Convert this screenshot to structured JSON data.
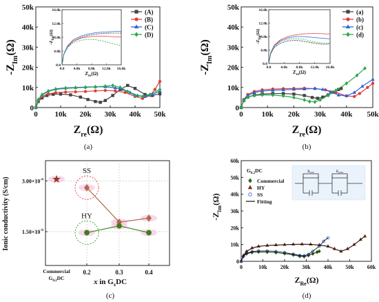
{
  "chart_data": [
    {
      "id": "a",
      "type": "line",
      "panel_label": "(a)",
      "xlabel_main": "Z",
      "xlabel_sub": "re",
      "xlabel_unit": "(Ω)",
      "ylabel_main": "-Z",
      "ylabel_sub": "Im",
      "ylabel_unit": "(Ω)",
      "xlim": [
        0,
        50000
      ],
      "ylim": [
        0,
        50000
      ],
      "xticks": [
        "0",
        "10k",
        "20k",
        "30k",
        "40k",
        "50k"
      ],
      "yticks": [
        "0",
        "10k",
        "20k",
        "30k",
        "40k",
        "50k"
      ],
      "legend": [
        "(A)",
        "(B)",
        "(C)",
        "(D)"
      ],
      "legend_position": "top-right",
      "series": [
        {
          "name": "(A)",
          "color": "#444444",
          "marker": "square",
          "x": [
            0,
            1000,
            2500,
            4500,
            7000,
            10000,
            14000,
            18000,
            21000,
            24000,
            26000,
            28000,
            31000,
            34000,
            37000,
            40000,
            44000,
            47000,
            50000
          ],
          "y": [
            0,
            3000,
            4800,
            6000,
            6600,
            6700,
            6300,
            5200,
            4000,
            3000,
            2600,
            3500,
            6000,
            9000,
            11000,
            9500,
            6500,
            6000,
            6800
          ]
        },
        {
          "name": "(B)",
          "color": "#e33b3b",
          "marker": "circle",
          "x": [
            0,
            1000,
            2500,
            5000,
            8000,
            12000,
            16000,
            20000,
            24000,
            28000,
            32000,
            36000,
            40000,
            43000,
            46000,
            48000,
            50000
          ],
          "y": [
            0,
            3500,
            5500,
            6800,
            7400,
            7700,
            7800,
            8000,
            8300,
            8500,
            8300,
            7500,
            5500,
            4500,
            6000,
            9000,
            13000
          ]
        },
        {
          "name": "(C)",
          "color": "#2b63d9",
          "marker": "triangle",
          "x": [
            0,
            1000,
            2500,
            5000,
            8000,
            12000,
            16000,
            20000,
            24000,
            28000,
            32000,
            35000,
            38000,
            41000,
            44000,
            47000,
            50000
          ],
          "y": [
            0,
            4000,
            6500,
            8300,
            9300,
            9800,
            10000,
            10200,
            10300,
            10300,
            9800,
            9000,
            7500,
            6000,
            5500,
            6500,
            8200
          ]
        },
        {
          "name": "(D)",
          "color": "#2aa84a",
          "marker": "diamond",
          "x": [
            0,
            1000,
            2500,
            5000,
            8000,
            12000,
            16000,
            20000,
            24000,
            28000,
            31000,
            34000,
            37000,
            40000,
            43000,
            46000,
            50000
          ],
          "y": [
            0,
            4000,
            6200,
            8000,
            9000,
            9500,
            9800,
            10000,
            10300,
            10600,
            11000,
            10000,
            8000,
            6000,
            5500,
            6500,
            9000
          ]
        }
      ],
      "inset": {
        "xlabel_main": "Z",
        "xlabel_sub": "re",
        "xlabel_unit": "(Ω)",
        "ylabel_main": "-Z",
        "ylabel_sub": "Im",
        "ylabel_unit": "(Ω)",
        "xlim": [
          0,
          16000
        ],
        "ylim": [
          0,
          16000
        ],
        "xticks": [
          "0.0",
          "4.0k",
          "8.0k",
          "12.0k",
          "16.0k"
        ],
        "yticks": [
          "0.0",
          "4.0k",
          "8.0k",
          "12.0k",
          "16.0k"
        ],
        "series": [
          {
            "name": "(A)",
            "x": [
              0,
              500,
              1500,
              3000,
              5000,
              7000,
              9000,
              11000,
              13000,
              15000,
              16000
            ],
            "y": [
              0,
              3000,
              5200,
              6800,
              7900,
              8500,
              8900,
              9100,
              9200,
              9200,
              9200
            ]
          },
          {
            "name": "(B)",
            "x": [
              0,
              500,
              1500,
              3000,
              5000,
              7000,
              9000,
              11000,
              13000,
              15000,
              16000
            ],
            "y": [
              0,
              3100,
              5300,
              6800,
              7700,
              8100,
              8300,
              8300,
              8200,
              8100,
              8000
            ]
          },
          {
            "name": "(C)",
            "x": [
              0,
              500,
              1500,
              3000,
              5000,
              7000,
              9000,
              11000,
              13000,
              15000,
              16000
            ],
            "y": [
              0,
              3200,
              5500,
              7200,
              8300,
              8900,
              9300,
              9500,
              9600,
              9700,
              9700
            ]
          },
          {
            "name": "(D)",
            "x": [
              0,
              500,
              1500,
              3000,
              5000,
              7000,
              9000,
              11000,
              13000,
              15000,
              16000
            ],
            "y": [
              0,
              3000,
              5000,
              6400,
              7100,
              7400,
              7300,
              6900,
              6300,
              5800,
              5600
            ]
          }
        ]
      }
    },
    {
      "id": "b",
      "type": "line",
      "panel_label": "(b)",
      "xlabel_main": "Z",
      "xlabel_sub": "re",
      "xlabel_unit": "(Ω)",
      "ylabel_main": "-Z",
      "ylabel_sub": "Im",
      "ylabel_unit": "(Ω)",
      "xlim": [
        0,
        50000
      ],
      "ylim": [
        0,
        50000
      ],
      "xticks": [
        "0",
        "10k",
        "20k",
        "30k",
        "40k",
        "50k"
      ],
      "yticks": [
        "0",
        "10k",
        "20k",
        "30k",
        "40k",
        "50k"
      ],
      "legend": [
        "(a)",
        "(b)",
        "(c)",
        "(d)"
      ],
      "legend_position": "top-right",
      "series": [
        {
          "name": "(a)",
          "color": "#444444",
          "marker": "square",
          "x": [
            0,
            1000,
            2500,
            5000,
            8000,
            12000,
            16000,
            20000,
            24000,
            27000,
            29000,
            31000,
            33000,
            35000,
            37000,
            38000
          ],
          "y": [
            0,
            3500,
            5200,
            6200,
            6700,
            7000,
            7000,
            6700,
            6000,
            5000,
            4600,
            5200,
            6300,
            7600,
            9000,
            9500
          ]
        },
        {
          "name": "(b)",
          "color": "#e33b3b",
          "marker": "circle",
          "x": [
            0,
            1000,
            2500,
            5000,
            8000,
            12000,
            16000,
            20000,
            24000,
            28000,
            32000,
            36000,
            40000,
            43000,
            45000,
            48000,
            50000
          ],
          "y": [
            0,
            4000,
            6500,
            8000,
            8800,
            9200,
            9400,
            9500,
            9600,
            9400,
            8800,
            7500,
            5800,
            5500,
            7000,
            10000,
            12000
          ]
        },
        {
          "name": "(c)",
          "color": "#2b63d9",
          "marker": "triangle",
          "x": [
            0,
            1000,
            2500,
            5000,
            8000,
            12000,
            16000,
            20000,
            24000,
            28000,
            31000,
            34000,
            37000,
            40000,
            43000,
            46000,
            50000
          ],
          "y": [
            0,
            3800,
            6000,
            7500,
            8200,
            8600,
            8800,
            9000,
            9200,
            9500,
            9000,
            7800,
            6200,
            5800,
            7500,
            10500,
            14000
          ]
        },
        {
          "name": "(d)",
          "color": "#2aa84a",
          "marker": "diamond",
          "x": [
            0,
            1000,
            2500,
            5000,
            8000,
            12000,
            16000,
            20000,
            24000,
            26000,
            28000,
            30000,
            33000,
            36000,
            40000,
            44000,
            47000
          ],
          "y": [
            0,
            3500,
            5200,
            6000,
            6300,
            6200,
            5800,
            5000,
            3800,
            3000,
            2800,
            3800,
            6000,
            8500,
            12000,
            16000,
            19500
          ]
        }
      ],
      "inset": {
        "xlabel_main": "Z",
        "xlabel_sub": "re",
        "xlabel_unit": "(Ω)",
        "ylabel_main": "-Z",
        "ylabel_sub": "Im",
        "ylabel_unit": "(Ω)",
        "xlim": [
          0,
          16000
        ],
        "ylim": [
          0,
          16000
        ],
        "xticks": [
          "0.0",
          "4.0k",
          "8.0k",
          "12.0k",
          "16.0k"
        ],
        "yticks": [
          "0.0",
          "4.0k",
          "8.0k",
          "12.0k",
          "16.0k"
        ],
        "series": [
          {
            "name": "(a)",
            "x": [
              0,
              500,
              1500,
              3000,
              5000,
              7000,
              9000,
              11000,
              13000,
              15000,
              16000
            ],
            "y": [
              0,
              2800,
              4800,
              6000,
              6700,
              6900,
              6600,
              6200,
              5800,
              5700,
              5900
            ]
          },
          {
            "name": "(b)",
            "x": [
              0,
              500,
              1500,
              3000,
              5000,
              7000,
              9000,
              11000,
              13000,
              15000,
              16000
            ],
            "y": [
              0,
              3200,
              5500,
              7000,
              8000,
              8500,
              8800,
              8900,
              8900,
              8800,
              8800
            ]
          },
          {
            "name": "(c)",
            "x": [
              0,
              500,
              1500,
              3000,
              5000,
              7000,
              9000,
              11000,
              13000,
              15000,
              16000
            ],
            "y": [
              0,
              3100,
              5300,
              6700,
              7600,
              8000,
              8000,
              7800,
              7600,
              7400,
              7300
            ]
          },
          {
            "name": "(d)",
            "x": [
              0,
              500,
              1500,
              3000,
              5000,
              7000,
              9000,
              11000,
              13000,
              15000,
              16000
            ],
            "y": [
              0,
              2900,
              5000,
              6400,
              7200,
              7400,
              7200,
              6600,
              6200,
              6000,
              6000
            ]
          }
        ]
      }
    },
    {
      "id": "c",
      "type": "scatter",
      "panel_label": "(c)",
      "ylabel": "Ionic conductivity (S/cm)",
      "xlabel_pre": "x in G",
      "xlabel_sub": "x",
      "xlabel_post": "DC",
      "categories": [
        "Commercial G0.2DC",
        "0.2",
        "0.3",
        "0.4"
      ],
      "xtick_commercial_line1": "Commercial",
      "xtick_commercial_line2_main": "G",
      "xtick_commercial_line2_sub": "0.2",
      "xtick_commercial_line2_post": "DC",
      "xticks": [
        "0.2",
        "0.3",
        "0.4"
      ],
      "yticks": [
        "3.00×10",
        "1.50×10"
      ],
      "ytick_exp": "-6",
      "ytick_values": [
        3e-06,
        1.5e-06
      ],
      "ylim": [
        5e-07,
        3.6e-06
      ],
      "grid": true,
      "annotations": [
        "SS",
        "HY"
      ],
      "series": [
        {
          "name": "Commercial",
          "color": "#8b3a1a",
          "marker": "star",
          "x": [
            0
          ],
          "values": [
            3.05e-06
          ]
        },
        {
          "name": "SS",
          "color": "#b06a4a",
          "marker": "diamond",
          "x": [
            1,
            2,
            3
          ],
          "values": [
            2.8e-06,
            1.78e-06,
            1.9e-06
          ]
        },
        {
          "name": "HY",
          "color": "#3f7d1a",
          "marker": "circle",
          "x": [
            1,
            2,
            3
          ],
          "values": [
            1.47e-06,
            1.67e-06,
            1.47e-06
          ]
        }
      ]
    },
    {
      "id": "d",
      "type": "scatter",
      "panel_label": "(d)",
      "xlabel_main": "Z",
      "xlabel_sub": "Re",
      "xlabel_unit": "(Ω)",
      "ylabel_main": "-Z",
      "ylabel_sub": "Im",
      "ylabel_unit": "(Ω)",
      "xlim": [
        0,
        60000
      ],
      "ylim": [
        0,
        60000
      ],
      "xticks": [
        "0",
        "10k",
        "20k",
        "30k",
        "40k",
        "50k",
        "60k"
      ],
      "yticks": [
        "0",
        "10k",
        "20k",
        "30k",
        "40k",
        "50k",
        "60k"
      ],
      "legend_title_main": "G",
      "legend_title_sub": "0.2",
      "legend_title_post": "DC",
      "legend": [
        "Commercial",
        "HY",
        "SS",
        "Fitting"
      ],
      "legend_position": "top-left",
      "circuit_labels": [
        "R",
        "R"
      ],
      "circuit_label_subs": [
        "bulk",
        "grain"
      ],
      "series": [
        {
          "name": "Commercial",
          "color": "#2e6b12",
          "marker": "diamond",
          "x": [
            0,
            1000,
            2500,
            5000,
            8000,
            12000,
            16000,
            20000,
            24000,
            27000,
            29000,
            31000,
            33000,
            35000,
            36000
          ],
          "y": [
            0,
            3000,
            4500,
            5300,
            5600,
            5500,
            5200,
            4600,
            3800,
            3000,
            2800,
            3500,
            4500,
            5500,
            6000
          ]
        },
        {
          "name": "HY",
          "color": "#8b2a10",
          "marker": "triangle",
          "x": [
            0,
            1000,
            2500,
            5000,
            8000,
            12000,
            16000,
            20000,
            24000,
            28000,
            32000,
            36000,
            40000,
            43000,
            46000,
            49000,
            52000,
            55000,
            57000
          ],
          "y": [
            0,
            3500,
            6000,
            8000,
            9000,
            9500,
            9800,
            10000,
            10200,
            10300,
            10200,
            9800,
            9000,
            7500,
            6000,
            7500,
            10000,
            13000,
            15000
          ]
        },
        {
          "name": "SS",
          "color": "#2255cc",
          "marker": "circle",
          "x": [
            0,
            1000,
            2500,
            5000,
            8000,
            12000,
            16000,
            20000,
            24000,
            27000,
            29000,
            31000,
            33000,
            36000,
            38000,
            40000
          ],
          "y": [
            0,
            3000,
            4800,
            5800,
            6200,
            6200,
            5900,
            5200,
            4300,
            3500,
            3300,
            4200,
            6000,
            9000,
            12000,
            14000
          ]
        },
        {
          "name": "Fitting",
          "color": "#111111",
          "marker": "none",
          "x": [
            0,
            1000,
            2500,
            5000,
            8000,
            12000,
            16000,
            20000,
            24000,
            28000,
            32000,
            36000,
            40000,
            43000,
            46000,
            49000,
            52000,
            55000,
            57000
          ],
          "y": [
            0,
            3400,
            5900,
            7900,
            8900,
            9400,
            9700,
            9900,
            10100,
            10200,
            10100,
            9700,
            8900,
            7400,
            6000,
            7400,
            9900,
            12900,
            14900
          ]
        }
      ]
    }
  ]
}
